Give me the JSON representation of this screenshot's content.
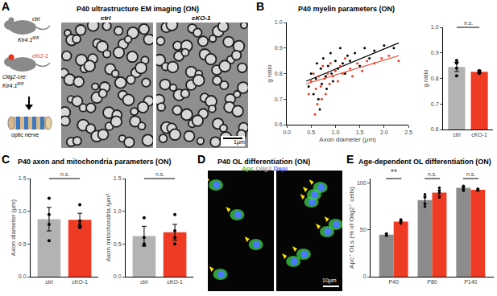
{
  "figure": {
    "panels": [
      {
        "label": "A",
        "title": "P40 ultrastructure EM imaging (ON)"
      },
      {
        "label": "B",
        "title": "P40 myelin parameters (ON)"
      },
      {
        "label": "C",
        "title": "P40 axon and mitochondria parameters (ON)"
      },
      {
        "label": "D",
        "title": "P40 OL differentiation (ON)"
      },
      {
        "label": "E",
        "title": "Age-dependent OL differentiation (ON)"
      }
    ],
    "schematic": {
      "ctrl_label": "ctrl",
      "ctrl_genotype": {
        "text": "Kir4.1",
        "sup": "fl/fl"
      },
      "cko_label": "cKO-1",
      "cko_genotype": [
        {
          "text": "Olig2-cre:",
          "sup": ""
        },
        {
          "text": "Kir4.1",
          "sup": "fl/fl"
        }
      ],
      "tissue": "optic nerve"
    },
    "em_images": {
      "labels": [
        "ctrl",
        "cKO-1"
      ],
      "scale_bar": "1µm"
    },
    "if_images": {
      "channels": [
        {
          "text": "Apc",
          "color": "#3fd14a"
        },
        {
          "text": "Olig2",
          "color": "#a0a0a0"
        },
        {
          "text": "Dapi",
          "color": "#4a7bff"
        }
      ],
      "scale_bar": "10µm"
    }
  },
  "chart_data": [
    {
      "type": "scatter",
      "xlabel": "Axon diameter (µm)",
      "ylabel": "g ratio",
      "xlim": [
        0,
        2.5
      ],
      "xticks": [
        {
          "value": 0,
          "label": "0.0"
        },
        0.5,
        {
          "value": 1,
          "label": "1.0"
        },
        1.5,
        {
          "value": 2,
          "label": "2.0"
        },
        2.5
      ],
      "ylim": [
        0.6,
        1.0
      ],
      "yticks": [
        0.6,
        0.7,
        0.8,
        0.9,
        {
          "value": 1,
          "label": "1.0"
        }
      ],
      "series": [
        {
          "name": "ctrl",
          "color": "#000000",
          "x": [
            0.45,
            0.5,
            0.55,
            0.6,
            0.62,
            0.65,
            0.7,
            0.72,
            0.75,
            0.8,
            0.82,
            0.85,
            0.9,
            0.92,
            0.95,
            1.0,
            1.05,
            1.1,
            1.15,
            1.2,
            1.25,
            1.3,
            1.4,
            1.5,
            1.6,
            1.7,
            1.8,
            2.0,
            2.2,
            0.68
          ],
          "values": [
            0.75,
            0.8,
            0.72,
            0.78,
            0.84,
            0.7,
            0.82,
            0.76,
            0.86,
            0.79,
            0.74,
            0.83,
            0.88,
            0.8,
            0.77,
            0.85,
            0.82,
            0.9,
            0.84,
            0.8,
            0.87,
            0.85,
            0.88,
            0.83,
            0.9,
            0.86,
            0.89,
            0.91,
            0.9,
            0.66
          ],
          "fit": {
            "x": [
              0.4,
              2.3
            ],
            "values": [
              0.77,
              0.92
            ]
          }
        },
        {
          "name": "cKO-1",
          "color": "#ef3b24",
          "x": [
            0.45,
            0.5,
            0.55,
            0.6,
            0.63,
            0.66,
            0.7,
            0.74,
            0.78,
            0.8,
            0.84,
            0.88,
            0.9,
            0.95,
            1.0,
            1.05,
            1.1,
            1.15,
            1.2,
            1.3,
            1.35,
            1.45,
            1.55,
            1.65,
            1.8,
            1.95,
            2.1,
            2.3,
            0.58,
            0.72
          ],
          "values": [
            0.72,
            0.77,
            0.8,
            0.74,
            0.68,
            0.79,
            0.75,
            0.83,
            0.78,
            0.72,
            0.8,
            0.76,
            0.84,
            0.79,
            0.81,
            0.77,
            0.83,
            0.8,
            0.86,
            0.82,
            0.79,
            0.84,
            0.81,
            0.85,
            0.84,
            0.86,
            0.87,
            0.85,
            0.64,
            0.7
          ],
          "fit": {
            "x": [
              0.4,
              2.3
            ],
            "values": [
              0.76,
              0.87
            ]
          }
        }
      ]
    },
    {
      "type": "bar",
      "ylabel": "g ratio",
      "categories": [
        "ctrl",
        "cKO-1"
      ],
      "values": [
        0.845,
        0.826
      ],
      "errors": [
        0.018,
        0.004
      ],
      "points": [
        [
          0.87,
          0.86,
          0.84,
          0.81
        ],
        [
          0.83,
          0.82,
          0.825,
          0.83
        ]
      ],
      "colors": [
        "#b3b3b3",
        "#ef3b24"
      ],
      "ylim": [
        0.6,
        1.0
      ],
      "yticks": [
        0.6,
        0.7,
        0.8,
        0.9,
        {
          "value": 1,
          "label": "1.0"
        }
      ],
      "annotations": [
        {
          "text": "n.s."
        }
      ]
    },
    {
      "type": "bar",
      "ylabel": "Axon diameter (µm)",
      "categories": [
        "ctrl",
        "cKO-1"
      ],
      "values": [
        0.88,
        0.87
      ],
      "errors": [
        0.18,
        0.1
      ],
      "points": [
        [
          1.2,
          0.95,
          0.8,
          0.55
        ],
        [
          1.1,
          0.85,
          0.8,
          0.75
        ]
      ],
      "colors": [
        "#b3b3b3",
        "#ef3b24"
      ],
      "ylim": [
        0,
        1.5
      ],
      "yticks": [
        {
          "value": 0,
          "label": "0.0"
        },
        0.5,
        {
          "value": 1,
          "label": "1.0"
        },
        1.5
      ],
      "annotations": [
        {
          "text": "n.s."
        }
      ]
    },
    {
      "type": "bar",
      "ylabel": "Axon mitochondria /µm²",
      "categories": [
        "ctrl",
        "cKO-1"
      ],
      "values": [
        0.62,
        0.68
      ],
      "errors": [
        0.15,
        0.12
      ],
      "points": [
        [
          0.9,
          0.6,
          0.5,
          0.48
        ],
        [
          0.95,
          0.7,
          0.6,
          0.5
        ]
      ],
      "colors": [
        "#b3b3b3",
        "#ef3b24"
      ],
      "ylim": [
        0,
        1.5
      ],
      "yticks": [
        {
          "value": 0,
          "label": "0.0"
        },
        0.5,
        {
          "value": 1,
          "label": "1.0"
        },
        1.5
      ],
      "annotations": [
        {
          "text": "n.s."
        }
      ]
    },
    {
      "type": "bar",
      "ylabel": "Apc⁺ OLs (% of Olig2⁺ cells)",
      "categories": [
        "P40",
        "P80",
        "P140"
      ],
      "series": [
        {
          "name": "ctrl",
          "color": "#8c8c8c",
          "values": [
            45,
            82,
            95
          ],
          "errors": [
            1.2,
            4,
            1.5
          ],
          "points": [
            [
              44,
              46,
              45
            ],
            [
              78,
              85,
              75,
              88
            ],
            [
              92,
              96,
              95,
              97
            ]
          ]
        },
        {
          "name": "cKO-1",
          "color": "#ef3b24",
          "values": [
            59,
            90,
            93
          ],
          "errors": [
            1.5,
            2.8,
            0.8
          ],
          "points": [
            [
              57,
              60,
              61,
              59
            ],
            [
              85,
              95,
              90,
              92
            ],
            [
              93,
              94,
              92,
              93
            ]
          ]
        }
      ],
      "ylim": [
        0,
        105
      ],
      "yticks": [
        0,
        50,
        100
      ],
      "annotations": [
        {
          "text": "**",
          "category": "P40"
        },
        {
          "text": "n.s.",
          "category": "P80"
        },
        {
          "text": "n.s.",
          "category": "P140"
        }
      ]
    }
  ]
}
